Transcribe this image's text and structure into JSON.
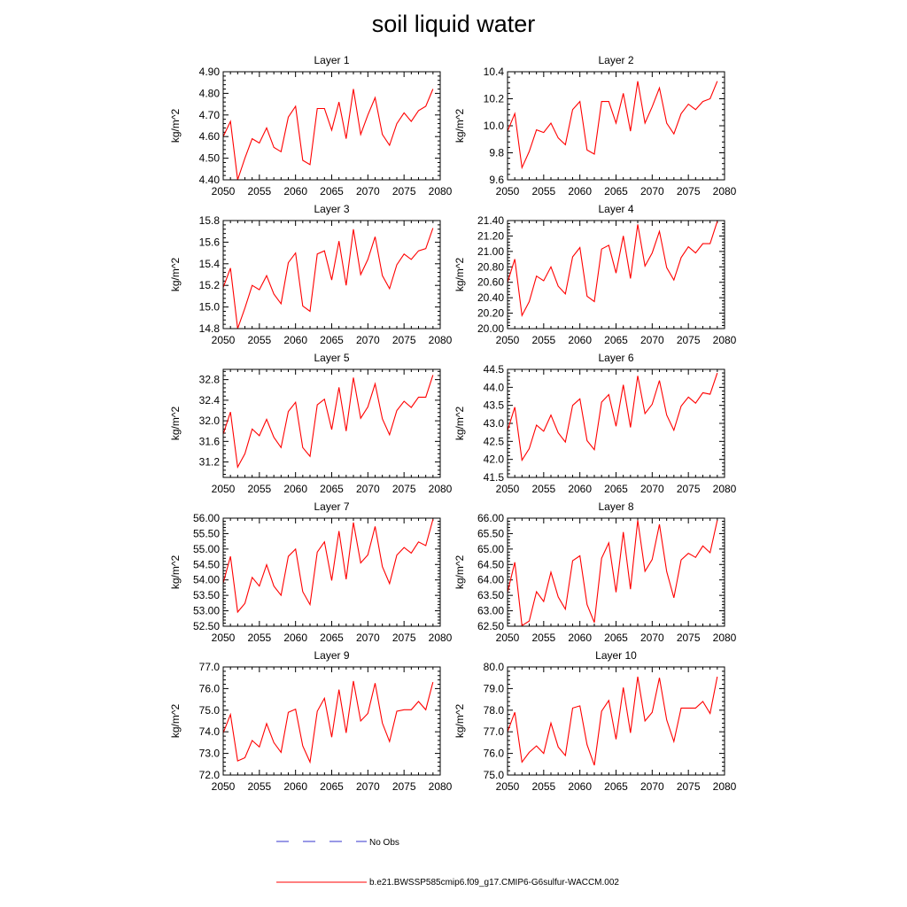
{
  "title": "soil liquid water",
  "colors": {
    "model": "#ff0000",
    "obs": "#3333cc"
  },
  "legend": {
    "obs_label": "No Obs",
    "model_label": "b.e21.BWSSP585cmip6.f09_g17.CMIP6-G6sulfur-WACCM.002"
  },
  "chart_data": [
    {
      "type": "line",
      "title": "Layer 1",
      "ylabel": "kg/m^2",
      "xlim": [
        2050,
        2080
      ],
      "xticks": [
        "2050",
        "2055",
        "2060",
        "2065",
        "2070",
        "2075",
        "2080"
      ],
      "ylim": [
        4.4,
        4.9
      ],
      "yticks": [
        "4.40",
        "4.50",
        "4.60",
        "4.70",
        "4.80",
        "4.90"
      ],
      "series": [
        {
          "values": [
            4.6,
            4.67,
            4.4,
            4.5,
            4.59,
            4.57,
            4.64,
            4.55,
            4.53,
            4.69,
            4.74,
            4.49,
            4.47,
            4.73,
            4.73,
            4.63,
            4.76,
            4.59,
            4.82,
            4.61,
            4.7,
            4.78,
            4.61,
            4.56,
            4.66,
            4.71,
            4.67,
            4.72,
            4.74,
            4.82
          ]
        }
      ],
      "x": [
        2050,
        2051,
        2052,
        2053,
        2054,
        2055,
        2056,
        2057,
        2058,
        2059,
        2060,
        2061,
        2062,
        2063,
        2064,
        2065,
        2066,
        2067,
        2068,
        2069,
        2070,
        2071,
        2072,
        2073,
        2074,
        2075,
        2076,
        2077,
        2078,
        2079
      ]
    },
    {
      "type": "line",
      "title": "Layer 2",
      "ylabel": "kg/m^2",
      "xlim": [
        2050,
        2080
      ],
      "xticks": [
        "2050",
        "2055",
        "2060",
        "2065",
        "2070",
        "2075",
        "2080"
      ],
      "ylim": [
        9.6,
        10.4
      ],
      "yticks": [
        "9.6",
        "9.8",
        "10.0",
        "10.2",
        "10.4"
      ],
      "series": [
        {
          "values": [
            9.96,
            10.09,
            9.69,
            9.81,
            9.97,
            9.95,
            10.02,
            9.91,
            9.86,
            10.12,
            10.18,
            9.82,
            9.79,
            10.18,
            10.18,
            10.02,
            10.24,
            9.96,
            10.33,
            10.02,
            10.14,
            10.28,
            10.02,
            9.94,
            10.09,
            10.16,
            10.12,
            10.18,
            10.2,
            10.33
          ]
        }
      ],
      "x": [
        2050,
        2051,
        2052,
        2053,
        2054,
        2055,
        2056,
        2057,
        2058,
        2059,
        2060,
        2061,
        2062,
        2063,
        2064,
        2065,
        2066,
        2067,
        2068,
        2069,
        2070,
        2071,
        2072,
        2073,
        2074,
        2075,
        2076,
        2077,
        2078,
        2079
      ]
    },
    {
      "type": "line",
      "title": "Layer 3",
      "ylabel": "kg/m^2",
      "xlim": [
        2050,
        2080
      ],
      "xticks": [
        "2050",
        "2055",
        "2060",
        "2065",
        "2070",
        "2075",
        "2080"
      ],
      "ylim": [
        14.8,
        15.8
      ],
      "yticks": [
        "14.8",
        "15.0",
        "15.2",
        "15.4",
        "15.6",
        "15.8"
      ],
      "series": [
        {
          "values": [
            15.18,
            15.36,
            14.8,
            14.99,
            15.2,
            15.16,
            15.29,
            15.12,
            15.03,
            15.41,
            15.5,
            15.01,
            14.96,
            15.49,
            15.52,
            15.25,
            15.61,
            15.2,
            15.72,
            15.3,
            15.44,
            15.65,
            15.29,
            15.17,
            15.39,
            15.49,
            15.44,
            15.52,
            15.54,
            15.73
          ]
        }
      ],
      "x": [
        2050,
        2051,
        2052,
        2053,
        2054,
        2055,
        2056,
        2057,
        2058,
        2059,
        2060,
        2061,
        2062,
        2063,
        2064,
        2065,
        2066,
        2067,
        2068,
        2069,
        2070,
        2071,
        2072,
        2073,
        2074,
        2075,
        2076,
        2077,
        2078,
        2079
      ]
    },
    {
      "type": "line",
      "title": "Layer 4",
      "ylabel": "kg/m^2",
      "xlim": [
        2050,
        2080
      ],
      "xticks": [
        "2050",
        "2055",
        "2060",
        "2065",
        "2070",
        "2075",
        "2080"
      ],
      "ylim": [
        20.0,
        21.4
      ],
      "yticks": [
        "20.00",
        "20.20",
        "20.40",
        "20.60",
        "20.80",
        "21.00",
        "21.20",
        "21.40"
      ],
      "series": [
        {
          "values": [
            20.6,
            20.9,
            20.17,
            20.35,
            20.68,
            20.62,
            20.8,
            20.55,
            20.45,
            20.93,
            21.05,
            20.42,
            20.35,
            21.03,
            21.08,
            20.72,
            21.2,
            20.65,
            21.35,
            20.81,
            20.98,
            21.26,
            20.79,
            20.63,
            20.92,
            21.06,
            20.98,
            21.1,
            21.1,
            21.39
          ]
        }
      ],
      "x": [
        2050,
        2051,
        2052,
        2053,
        2054,
        2055,
        2056,
        2057,
        2058,
        2059,
        2060,
        2061,
        2062,
        2063,
        2064,
        2065,
        2066,
        2067,
        2068,
        2069,
        2070,
        2071,
        2072,
        2073,
        2074,
        2075,
        2076,
        2077,
        2078,
        2079
      ]
    },
    {
      "type": "line",
      "title": "Layer 5",
      "ylabel": "kg/m^2",
      "xlim": [
        2050,
        2080
      ],
      "xticks": [
        "2050",
        "2055",
        "2060",
        "2065",
        "2070",
        "2075",
        "2080"
      ],
      "ylim": [
        30.9,
        33.0
      ],
      "yticks": [
        "31.2",
        "31.6",
        "32.0",
        "32.4",
        "32.8"
      ],
      "series": [
        {
          "values": [
            31.74,
            32.17,
            31.1,
            31.36,
            31.84,
            31.71,
            32.03,
            31.68,
            31.48,
            32.18,
            32.36,
            31.48,
            31.31,
            32.31,
            32.42,
            31.83,
            32.65,
            31.8,
            32.84,
            32.05,
            32.27,
            32.72,
            32.04,
            31.73,
            32.2,
            32.38,
            32.26,
            32.46,
            32.46,
            32.89
          ]
        }
      ],
      "x": [
        2050,
        2051,
        2052,
        2053,
        2054,
        2055,
        2056,
        2057,
        2058,
        2059,
        2060,
        2061,
        2062,
        2063,
        2064,
        2065,
        2066,
        2067,
        2068,
        2069,
        2070,
        2071,
        2072,
        2073,
        2074,
        2075,
        2076,
        2077,
        2078,
        2079
      ]
    },
    {
      "type": "line",
      "title": "Layer 6",
      "ylabel": "kg/m^2",
      "xlim": [
        2050,
        2080
      ],
      "xticks": [
        "2050",
        "2055",
        "2060",
        "2065",
        "2070",
        "2075",
        "2080"
      ],
      "ylim": [
        41.5,
        44.5
      ],
      "yticks": [
        "41.5",
        "42.0",
        "42.5",
        "43.0",
        "43.5",
        "44.0",
        "44.5"
      ],
      "series": [
        {
          "values": [
            42.8,
            43.45,
            41.98,
            42.3,
            42.95,
            42.78,
            43.23,
            42.74,
            42.48,
            43.5,
            43.68,
            42.52,
            42.27,
            43.59,
            43.8,
            42.92,
            44.07,
            42.89,
            44.32,
            43.27,
            43.53,
            44.19,
            43.23,
            42.81,
            43.48,
            43.73,
            43.56,
            43.85,
            43.81,
            44.4
          ]
        }
      ],
      "x": [
        2050,
        2051,
        2052,
        2053,
        2054,
        2055,
        2056,
        2057,
        2058,
        2059,
        2060,
        2061,
        2062,
        2063,
        2064,
        2065,
        2066,
        2067,
        2068,
        2069,
        2070,
        2071,
        2072,
        2073,
        2074,
        2075,
        2076,
        2077,
        2078,
        2079
      ]
    },
    {
      "type": "line",
      "title": "Layer 7",
      "ylabel": "kg/m^2",
      "xlim": [
        2050,
        2080
      ],
      "xticks": [
        "2050",
        "2055",
        "2060",
        "2065",
        "2070",
        "2075",
        "2080"
      ],
      "ylim": [
        52.5,
        56.0
      ],
      "yticks": [
        "52.50",
        "53.00",
        "53.50",
        "54.00",
        "54.50",
        "55.00",
        "55.50",
        "56.00"
      ],
      "series": [
        {
          "values": [
            53.9,
            54.76,
            52.96,
            53.24,
            54.08,
            53.8,
            54.49,
            53.8,
            53.5,
            54.76,
            55.0,
            53.62,
            53.2,
            54.9,
            55.23,
            53.98,
            55.58,
            54.02,
            55.86,
            54.55,
            54.81,
            55.73,
            54.43,
            53.88,
            54.8,
            55.05,
            54.87,
            55.23,
            55.11,
            55.96
          ]
        }
      ],
      "x": [
        2050,
        2051,
        2052,
        2053,
        2054,
        2055,
        2056,
        2057,
        2058,
        2059,
        2060,
        2061,
        2062,
        2063,
        2064,
        2065,
        2066,
        2067,
        2068,
        2069,
        2070,
        2071,
        2072,
        2073,
        2074,
        2075,
        2076,
        2077,
        2078,
        2079
      ]
    },
    {
      "type": "line",
      "title": "Layer 8",
      "ylabel": "kg/m^2",
      "xlim": [
        2050,
        2080
      ],
      "xticks": [
        "2050",
        "2055",
        "2060",
        "2065",
        "2070",
        "2075",
        "2080"
      ],
      "ylim": [
        62.5,
        66.0
      ],
      "yticks": [
        "62.50",
        "63.00",
        "63.50",
        "64.00",
        "64.50",
        "65.00",
        "65.50",
        "66.00"
      ],
      "series": [
        {
          "values": [
            63.6,
            64.57,
            62.52,
            62.67,
            63.62,
            63.3,
            64.25,
            63.45,
            63.05,
            64.62,
            64.78,
            63.2,
            62.62,
            64.7,
            65.2,
            63.6,
            65.55,
            63.7,
            65.93,
            64.28,
            64.66,
            65.8,
            64.27,
            63.42,
            64.65,
            64.86,
            64.73,
            65.1,
            64.88,
            65.93
          ]
        }
      ],
      "x": [
        2050,
        2051,
        2052,
        2053,
        2054,
        2055,
        2056,
        2057,
        2058,
        2059,
        2060,
        2061,
        2062,
        2063,
        2064,
        2065,
        2066,
        2067,
        2068,
        2069,
        2070,
        2071,
        2072,
        2073,
        2074,
        2075,
        2076,
        2077,
        2078,
        2079
      ]
    },
    {
      "type": "line",
      "title": "Layer 9",
      "ylabel": "kg/m^2",
      "xlim": [
        2050,
        2080
      ],
      "xticks": [
        "2050",
        "2055",
        "2060",
        "2065",
        "2070",
        "2075",
        "2080"
      ],
      "ylim": [
        72.0,
        77.0
      ],
      "yticks": [
        "72.0",
        "73.0",
        "74.0",
        "75.0",
        "76.0",
        "77.0"
      ],
      "series": [
        {
          "values": [
            73.95,
            74.8,
            72.65,
            72.8,
            73.6,
            73.3,
            74.38,
            73.5,
            73.05,
            74.9,
            75.05,
            73.35,
            72.6,
            74.95,
            75.55,
            73.75,
            75.95,
            73.95,
            76.35,
            74.5,
            74.85,
            76.25,
            74.4,
            73.55,
            74.95,
            75.02,
            75.02,
            75.4,
            75.02,
            76.3
          ]
        }
      ],
      "x": [
        2050,
        2051,
        2052,
        2053,
        2054,
        2055,
        2056,
        2057,
        2058,
        2059,
        2060,
        2061,
        2062,
        2063,
        2064,
        2065,
        2066,
        2067,
        2068,
        2069,
        2070,
        2071,
        2072,
        2073,
        2074,
        2075,
        2076,
        2077,
        2078,
        2079
      ]
    },
    {
      "type": "line",
      "title": "Layer 10",
      "ylabel": "kg/m^2",
      "xlim": [
        2050,
        2080
      ],
      "xticks": [
        "2050",
        "2055",
        "2060",
        "2065",
        "2070",
        "2075",
        "2080"
      ],
      "ylim": [
        75.0,
        80.0
      ],
      "yticks": [
        "75.0",
        "76.0",
        "77.0",
        "78.0",
        "79.0",
        "80.0"
      ],
      "series": [
        {
          "values": [
            77.0,
            77.9,
            75.6,
            76.05,
            76.35,
            76.0,
            77.4,
            76.3,
            75.9,
            78.1,
            78.2,
            76.4,
            75.45,
            77.95,
            78.45,
            76.65,
            79.05,
            76.95,
            79.55,
            77.5,
            77.9,
            79.5,
            77.55,
            76.55,
            78.1,
            78.1,
            78.1,
            78.4,
            77.85,
            79.55
          ]
        }
      ],
      "x": [
        2050,
        2051,
        2052,
        2053,
        2054,
        2055,
        2056,
        2057,
        2058,
        2059,
        2060,
        2061,
        2062,
        2063,
        2064,
        2065,
        2066,
        2067,
        2068,
        2069,
        2070,
        2071,
        2072,
        2073,
        2074,
        2075,
        2076,
        2077,
        2078,
        2079
      ]
    }
  ]
}
